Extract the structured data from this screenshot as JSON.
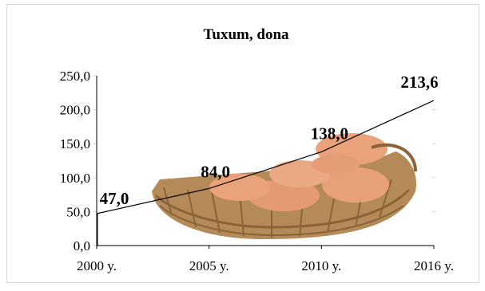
{
  "chart_data": {
    "type": "line",
    "title": "Tuxum, dona",
    "categories": [
      "2000 y.",
      "2005 y.",
      "2010 y.",
      "2016 y."
    ],
    "values": [
      47.0,
      84.0,
      138.0,
      213.6
    ],
    "data_labels": [
      "47,0",
      "84,0",
      "138,0",
      "213,6"
    ],
    "y_ticks": [
      "0,0",
      "50,0",
      "100,0",
      "150,0",
      "200,0",
      "250,0"
    ],
    "ylim": [
      0,
      250
    ],
    "grid": false,
    "legend": "none",
    "background_image": "egg-basket",
    "colors": {
      "line": "#000000",
      "egg": "#e9a27a",
      "basket": "#b48a58"
    }
  }
}
